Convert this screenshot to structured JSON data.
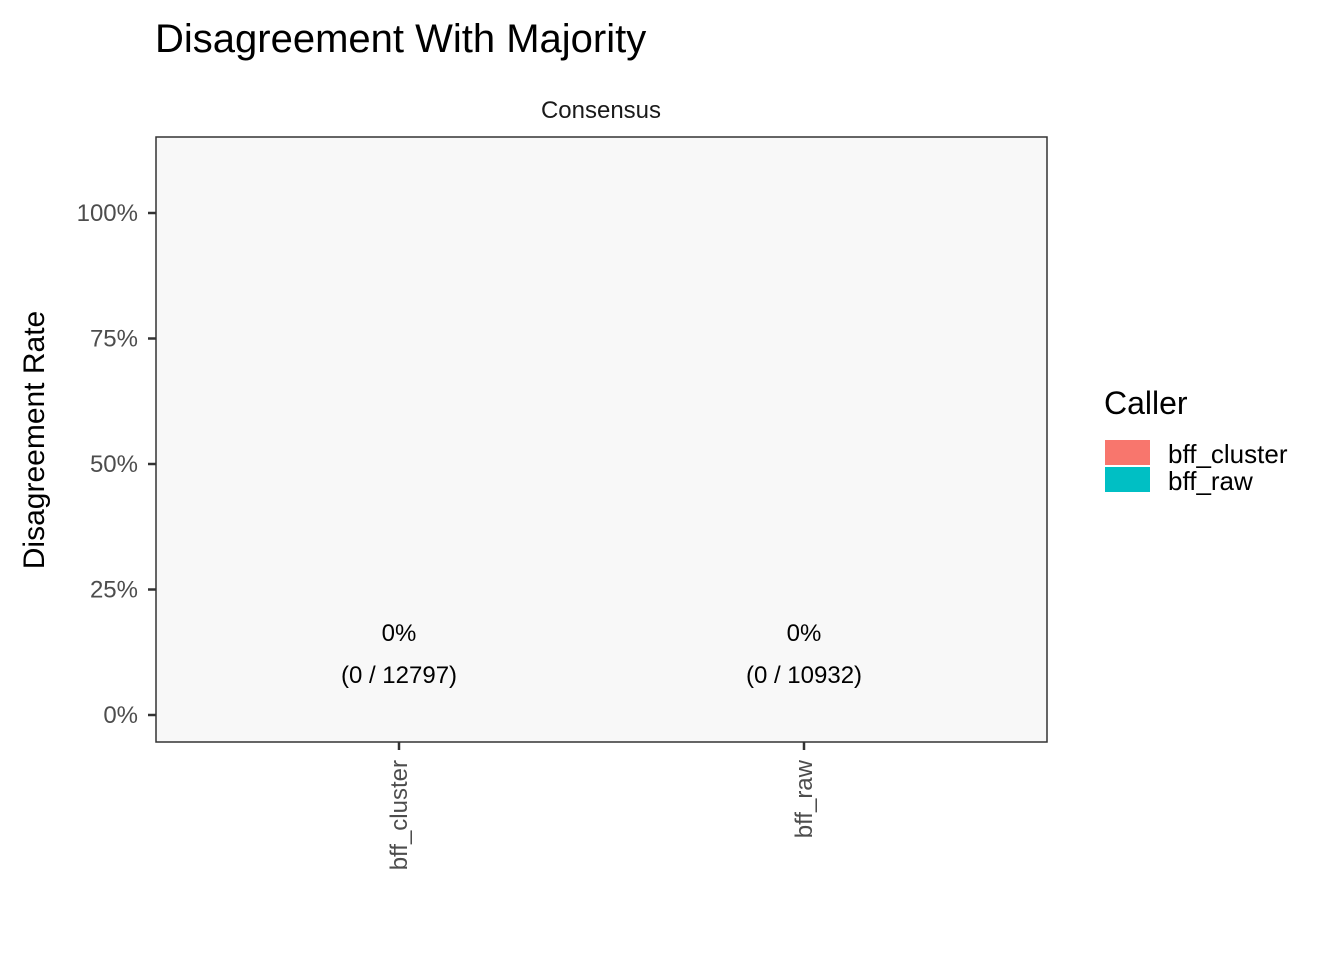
{
  "chart_data": {
    "type": "bar",
    "title": "Disagreement With Majority",
    "facet_label": "Consensus",
    "xlabel": "",
    "ylabel": "Disagreement Rate",
    "categories": [
      "bff_cluster",
      "bff_raw"
    ],
    "values": [
      0,
      0
    ],
    "ylim": [
      0,
      1.1
    ],
    "yticks": [
      0,
      0.25,
      0.5,
      0.75,
      1.0
    ],
    "ytick_labels": [
      "0%",
      "25%",
      "50%",
      "75%",
      "100%"
    ],
    "data_labels": [
      {
        "percent": "0%",
        "counts": "(0 / 12797)"
      },
      {
        "percent": "0%",
        "counts": "(0 / 10932)"
      }
    ],
    "grid": false,
    "legend": {
      "title": "Caller",
      "position": "right",
      "entries": [
        {
          "name": "bff_cluster",
          "color": "#F8766D"
        },
        {
          "name": "bff_raw",
          "color": "#00BFC4"
        }
      ]
    },
    "panel_background": "#f8f8f8"
  }
}
